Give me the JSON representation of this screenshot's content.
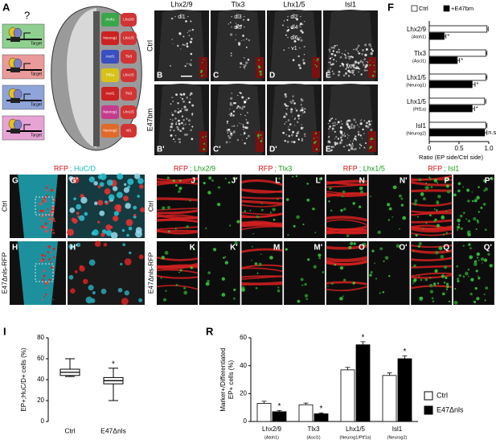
{
  "panel_a": {
    "label": "A",
    "question": "?",
    "targets": [
      "Target",
      "Target",
      "Target",
      "Target"
    ],
    "domains": [
      "Atoh1",
      "Lhx2/9",
      "Neurog1",
      "Lhx1/5",
      "Ascl1",
      "Tlx3",
      "Ptf1a",
      "Lhx1/5",
      "Ascl1",
      "Tlx3",
      "Neurog1",
      "Lhx1/5",
      "Neurog2",
      "Isl1"
    ]
  },
  "panels_be": {
    "headers": [
      "Lhx2/9",
      "Tlx3",
      "Lhx1/5",
      "Isl1"
    ],
    "rows": [
      "Ctrl",
      "E47bm"
    ],
    "letters": [
      [
        "B",
        "C",
        "D",
        "E"
      ],
      [
        "B'",
        "C'",
        "D'",
        "E'"
      ]
    ],
    "regions": [
      [
        "- dl1 -"
      ],
      [
        "- dl3 -",
        "- dl5 -"
      ],
      [
        "- dl2 -",
        "- dl4 -",
        "- dl6 -",
        "- v1 -"
      ],
      [
        "- MN -"
      ]
    ]
  },
  "panels_gh": {
    "header_rfp": "RFP",
    "header_huc": "; HuC/D",
    "rows": [
      "Ctrl",
      "E47Δnls-RFP"
    ],
    "letters": [
      [
        "G",
        "G'"
      ],
      [
        "H",
        "H'"
      ]
    ]
  },
  "panels_jq": {
    "header_rfp": "RFP",
    "markers": [
      "; Lhx2/9",
      "; Tlx3",
      "; Lhx1/5",
      "; Isl1"
    ],
    "rows": [
      "Ctrl",
      "E47Δnls-RFP"
    ],
    "letters": [
      [
        "J",
        "J'",
        "L",
        "L'",
        "N",
        "N'",
        "P",
        "P'"
      ],
      [
        "K",
        "K'",
        "M",
        "M'",
        "O",
        "O'",
        "Q",
        "Q'"
      ]
    ]
  },
  "chart_data": [
    {
      "type": "hbar",
      "panel_label": "F",
      "categories": [
        "Lhx2/9",
        "Tlx3",
        "Lhx1/5",
        "Lhx1/5",
        "Isl1"
      ],
      "category_sublabels": [
        "(Atoh1)",
        "(Ascl1)",
        "(Neurog1)",
        "(Ptf1a)",
        "(Neurog2)"
      ],
      "series": [
        {
          "name": "Ctrl",
          "color": "#ffffff",
          "values": [
            0.97,
            0.95,
            0.95,
            0.93,
            0.95
          ],
          "errors": [
            0.02,
            0.02,
            0.02,
            0.02,
            0.02
          ]
        },
        {
          "name": "+E47bm",
          "color": "#000000",
          "values": [
            0.25,
            0.47,
            0.72,
            0.72,
            0.93
          ],
          "errors": [
            0.03,
            0.04,
            0.05,
            0.04,
            0.04
          ],
          "annotations": [
            "*",
            "*",
            "*",
            "*",
            "n.s"
          ]
        }
      ],
      "xlim": [
        0,
        1
      ],
      "xticks": [
        0,
        0.5,
        {
          "value": 1,
          "label": "1.0"
        }
      ],
      "xlabel": "Ratio (EP side/Ctrl side)"
    },
    {
      "type": "box",
      "panel_label": "I",
      "categories": [
        "Ctrl",
        "E47Δnls"
      ],
      "boxes": [
        {
          "min": 43,
          "q1": 44,
          "median": 47,
          "q3": 50,
          "max": 60
        },
        {
          "min": 20,
          "q1": 36,
          "median": 39,
          "q3": 42,
          "max": 51
        }
      ],
      "annotations": [
        null,
        "*"
      ],
      "ylim": [
        0,
        80
      ],
      "yticks": [
        0,
        20,
        40,
        60,
        80
      ],
      "ylabel": "EP+;HuC/D+ cells (%)"
    },
    {
      "type": "bar",
      "panel_label": "R",
      "categories": [
        "Lhx2/9",
        "Tlx3",
        "Lhx1/5",
        "Isl1"
      ],
      "category_sublabels": [
        "(Atoh1)",
        "(Ascl1)",
        "(Neurog1/Ptf1a)",
        "(Neurog2)"
      ],
      "series": [
        {
          "name": "Ctrl",
          "color": "#ffffff",
          "values": [
            13,
            12,
            37,
            33
          ],
          "errors": [
            1.5,
            1.2,
            1.8,
            1.8
          ]
        },
        {
          "name": "E47Δnls",
          "color": "#000000",
          "values": [
            7,
            5.5,
            55,
            45
          ],
          "errors": [
            0.8,
            0.7,
            2.2,
            2
          ],
          "annotations": [
            "*",
            "*",
            "*",
            "*"
          ]
        }
      ],
      "ylim": [
        0,
        60
      ],
      "yticks": [
        0,
        20,
        40,
        60
      ],
      "ylabel": [
        "Marker+/Differentiated",
        "EP+ cells (%)"
      ]
    }
  ]
}
